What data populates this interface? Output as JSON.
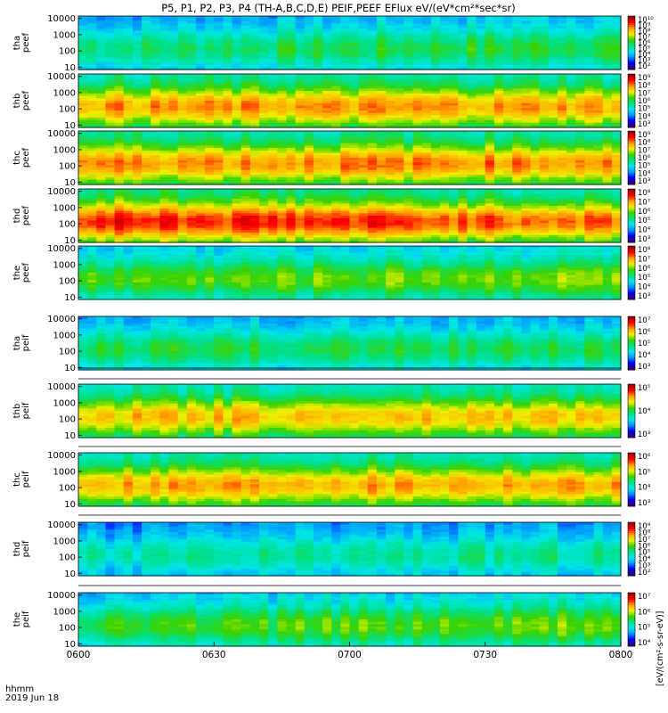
{
  "title": "P5, P1, P2, P3, P4 (TH-A,B,C,D,E) PEIF,PEEF EFlux eV/(eV*cm²*sec*sr)",
  "footer": {
    "time_label": "hhmm",
    "date_label": "2019 Jun 18"
  },
  "x_ticks": [
    "0600",
    "0630",
    "0700",
    "0730",
    "0800"
  ],
  "colors": {
    "background": "#ffffff",
    "colormap": [
      "#3a0068",
      "#0000ff",
      "#0096ff",
      "#00e6e6",
      "#00e08a",
      "#3cd200",
      "#f0f000",
      "#ffa000",
      "#ff0000",
      "#960000"
    ]
  },
  "chart_data": {
    "type": "heatmap",
    "title": "P5, P1, P2, P3, P4 (TH-A,B,C,D,E) PEIF,PEEF EFlux eV/(eV*cm²*sec*sr)",
    "x": {
      "start": "06:00",
      "end": "08:00",
      "ticks": [
        "0600",
        "0630",
        "0700",
        "0730",
        "0800"
      ]
    },
    "y_scale": "log",
    "y_ticks": [
      "10",
      "100",
      "1000",
      "10000"
    ],
    "panels": [
      {
        "probe": "tha",
        "species": "peef",
        "label": "tha\npeef",
        "cb_ticks": [
          "10²",
          "10³",
          "10⁴",
          "10⁵",
          "10⁶",
          "10⁷",
          "10⁸",
          "10⁹",
          "10¹⁰"
        ],
        "base_level": 0.42,
        "trend": 0.06
      },
      {
        "probe": "thb",
        "species": "peef",
        "label": "thb\npeef",
        "cb_ticks": [
          "10³",
          "10⁴",
          "10⁵",
          "10⁶",
          "10⁷",
          "10⁸",
          "10⁹"
        ],
        "base_level": 0.7,
        "trend": 0.0
      },
      {
        "probe": "thc",
        "species": "peef",
        "label": "thc\npeef",
        "cb_ticks": [
          "10³",
          "10⁴",
          "10⁵",
          "10⁶",
          "10⁷",
          "10⁸",
          "10⁹"
        ],
        "base_level": 0.72,
        "trend": 0.0
      },
      {
        "probe": "thd",
        "species": "peef",
        "label": "thd\npeef",
        "cb_ticks": [
          "10³",
          "10⁴",
          "10⁵",
          "10⁶",
          "10⁷",
          "10⁸"
        ],
        "base_level": 0.82,
        "trend": -0.08
      },
      {
        "probe": "the",
        "species": "peef",
        "label": "the\npeef",
        "cb_ticks": [
          "10³",
          "10⁴",
          "10⁵",
          "10⁶",
          "10⁷",
          "10⁸"
        ],
        "base_level": 0.5,
        "trend": 0.05
      },
      {
        "probe": "tha",
        "species": "peif",
        "label": "tha\npeif",
        "cb_ticks": [
          "10³",
          "10⁴",
          "10⁵",
          "10⁶",
          "10⁷"
        ],
        "base_level": 0.45,
        "trend": 0.0
      },
      {
        "probe": "thb",
        "species": "peif",
        "label": "thb\npeif",
        "cb_ticks": [
          "10³",
          "10⁴",
          "10⁵"
        ],
        "base_level": 0.66,
        "trend": 0.0
      },
      {
        "probe": "thc",
        "species": "peif",
        "label": "thc\npeif",
        "cb_ticks": [
          "10³",
          "10⁴",
          "10⁵",
          "10⁶"
        ],
        "base_level": 0.7,
        "trend": 0.0
      },
      {
        "probe": "thd",
        "species": "peif",
        "label": "thd\npeif",
        "cb_ticks": [
          "10²",
          "10³",
          "10⁴",
          "10⁵",
          "10⁶",
          "10⁷",
          "10⁸",
          "10⁹"
        ],
        "base_level": 0.36,
        "trend": 0.04
      },
      {
        "probe": "the",
        "species": "peif",
        "label": "the\npeif",
        "cb_ticks": [
          "10⁴",
          "10⁵",
          "10⁶",
          "10⁷"
        ],
        "base_level": 0.48,
        "trend": 0.06
      }
    ],
    "colorbar_label": "[eV/(cm²-s-sr-eV)]"
  }
}
